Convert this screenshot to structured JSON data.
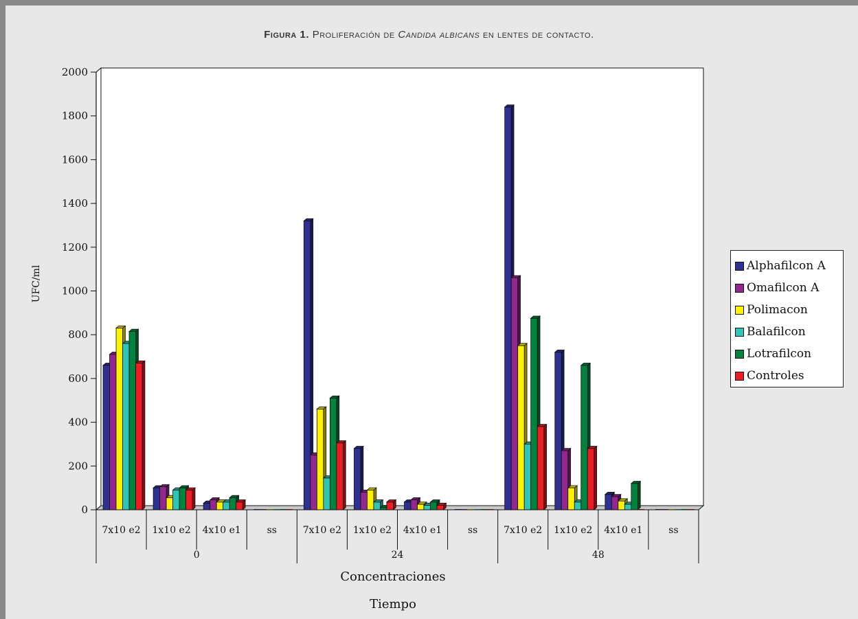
{
  "figure": {
    "title_prefix": "Figura 1.",
    "title_main": "Proliferación de",
    "title_italic": "Candida albicans",
    "title_suffix": "en lentes de contacto."
  },
  "chart_data": {
    "type": "bar",
    "ylabel": "UFC/ml",
    "xlabel_inner": "Concentraciones",
    "xlabel_outer": "Tiempo",
    "ylim": [
      0,
      2000
    ],
    "yticks": [
      0,
      200,
      400,
      600,
      800,
      1000,
      1200,
      1400,
      1600,
      1800,
      2000
    ],
    "grid": true,
    "legend_position": "right",
    "groups": [
      "0",
      "24",
      "48"
    ],
    "concentrations": [
      "7x10 e2",
      "1x10 e2",
      "4x10 e1",
      "ss"
    ],
    "categories": [
      "7x10 e2",
      "1x10 e2",
      "4x10 e1",
      "ss",
      "7x10 e2",
      "1x10 e2",
      "4x10 e1",
      "ss",
      "7x10 e2",
      "1x10 e2",
      "4x10 e1",
      "ss"
    ],
    "series": [
      {
        "name": "Alphafilcon A",
        "color": "#2e3192",
        "values": [
          660,
          100,
          30,
          0,
          1320,
          280,
          35,
          0,
          1840,
          720,
          70,
          0
        ]
      },
      {
        "name": "Omafilcon A",
        "color": "#92278f",
        "values": [
          710,
          105,
          45,
          0,
          250,
          80,
          45,
          0,
          1060,
          270,
          60,
          0
        ]
      },
      {
        "name": "Polimacon",
        "color": "#fff200",
        "values": [
          830,
          55,
          35,
          0,
          460,
          90,
          25,
          0,
          750,
          100,
          40,
          0
        ]
      },
      {
        "name": "Balafilcon",
        "color": "#2ec4b6",
        "values": [
          760,
          90,
          35,
          0,
          145,
          35,
          20,
          0,
          300,
          35,
          25,
          0
        ]
      },
      {
        "name": "Lotrafilcon",
        "color": "#00843d",
        "values": [
          815,
          100,
          55,
          0,
          510,
          10,
          35,
          0,
          875,
          660,
          120,
          0
        ]
      },
      {
        "name": "Controles",
        "color": "#ed1c24",
        "values": [
          670,
          90,
          35,
          0,
          305,
          35,
          20,
          0,
          380,
          280,
          0,
          0
        ]
      }
    ]
  }
}
